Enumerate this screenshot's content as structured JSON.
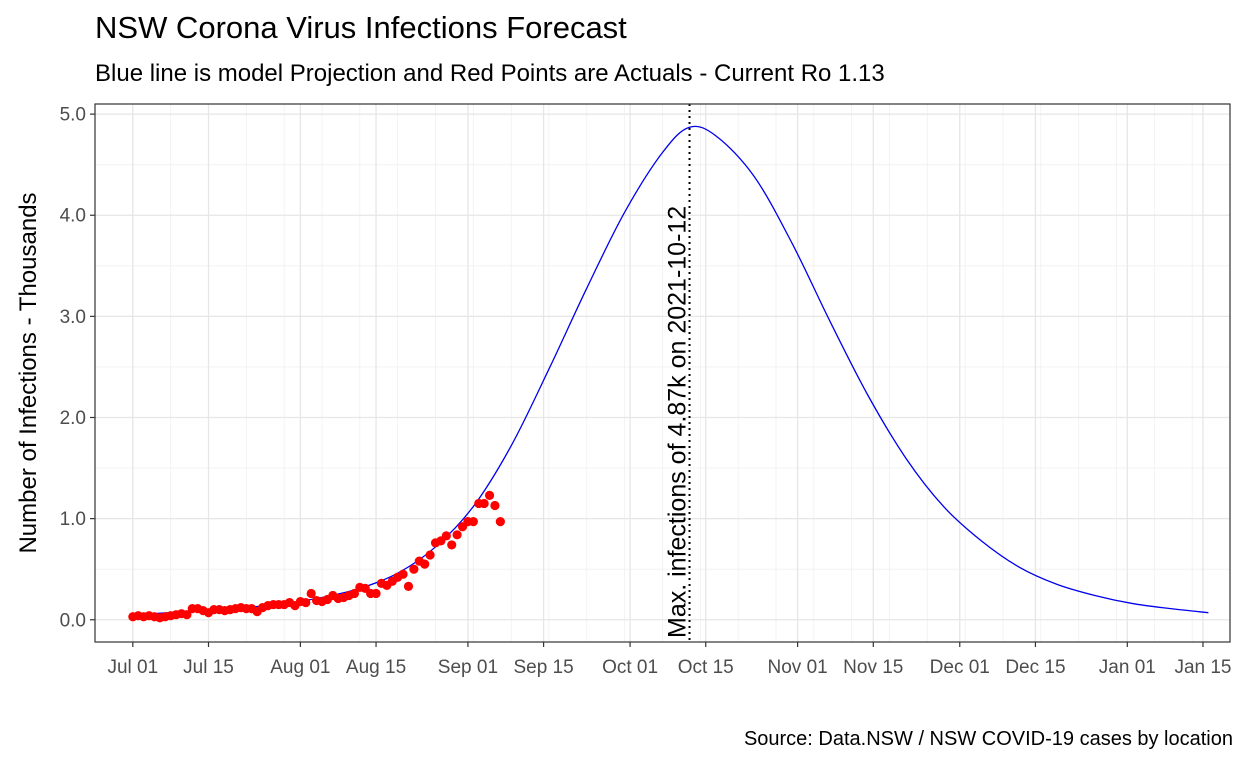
{
  "chart_data": {
    "type": "line",
    "title": "NSW Corona Virus Infections Forecast",
    "subtitle": "Blue line is model Projection and Red Points are Actuals - Current Ro 1.13",
    "caption": "Source: Data.NSW / NSW COVID-19 cases by location",
    "xlabel": "",
    "ylabel": "Number of Infections - Thousands",
    "xlim": [
      "2021-06-24",
      "2022-01-20"
    ],
    "ylim": [
      -0.22,
      5.1
    ],
    "x_ticks": [
      {
        "date": "2021-07-01",
        "label": "Jul 01"
      },
      {
        "date": "2021-07-15",
        "label": "Jul 15"
      },
      {
        "date": "2021-08-01",
        "label": "Aug 01"
      },
      {
        "date": "2021-08-15",
        "label": "Aug 15"
      },
      {
        "date": "2021-09-01",
        "label": "Sep 01"
      },
      {
        "date": "2021-09-15",
        "label": "Sep 15"
      },
      {
        "date": "2021-10-01",
        "label": "Oct 01"
      },
      {
        "date": "2021-10-15",
        "label": "Oct 15"
      },
      {
        "date": "2021-11-01",
        "label": "Nov 01"
      },
      {
        "date": "2021-11-15",
        "label": "Nov 15"
      },
      {
        "date": "2021-12-01",
        "label": "Dec 01"
      },
      {
        "date": "2021-12-15",
        "label": "Dec 15"
      },
      {
        "date": "2022-01-01",
        "label": "Jan 01"
      },
      {
        "date": "2022-01-15",
        "label": "Jan 15"
      }
    ],
    "y_ticks": [
      {
        "value": 0,
        "label": "0.0"
      },
      {
        "value": 1,
        "label": "1.0"
      },
      {
        "value": 2,
        "label": "2.0"
      },
      {
        "value": 3,
        "label": "3.0"
      },
      {
        "value": 4,
        "label": "4.0"
      },
      {
        "value": 5,
        "label": "5.0"
      }
    ],
    "grid": true,
    "series": [
      {
        "kind": "line",
        "color": "#0000ee",
        "points": [
          [
            "2021-07-01",
            0.05
          ],
          [
            "2021-07-08",
            0.07
          ],
          [
            "2021-07-15",
            0.09
          ],
          [
            "2021-07-22",
            0.12
          ],
          [
            "2021-07-29",
            0.16
          ],
          [
            "2021-08-05",
            0.22
          ],
          [
            "2021-08-12",
            0.31
          ],
          [
            "2021-08-19",
            0.46
          ],
          [
            "2021-08-26",
            0.72
          ],
          [
            "2021-09-02",
            1.12
          ],
          [
            "2021-09-09",
            1.72
          ],
          [
            "2021-09-16",
            2.48
          ],
          [
            "2021-09-23",
            3.28
          ],
          [
            "2021-09-30",
            4.03
          ],
          [
            "2021-10-07",
            4.62
          ],
          [
            "2021-10-12",
            4.87
          ],
          [
            "2021-10-17",
            4.78
          ],
          [
            "2021-10-24",
            4.38
          ],
          [
            "2021-10-31",
            3.72
          ],
          [
            "2021-11-07",
            2.95
          ],
          [
            "2021-11-14",
            2.22
          ],
          [
            "2021-11-21",
            1.6
          ],
          [
            "2021-11-28",
            1.12
          ],
          [
            "2021-12-05",
            0.78
          ],
          [
            "2021-12-12",
            0.52
          ],
          [
            "2021-12-19",
            0.35
          ],
          [
            "2021-12-26",
            0.24
          ],
          [
            "2022-01-02",
            0.16
          ],
          [
            "2022-01-09",
            0.11
          ],
          [
            "2022-01-16",
            0.07
          ]
        ]
      },
      {
        "kind": "scatter",
        "color": "#ff0000",
        "points": [
          [
            "2021-07-01",
            0.03
          ],
          [
            "2021-07-02",
            0.04
          ],
          [
            "2021-07-03",
            0.03
          ],
          [
            "2021-07-04",
            0.04
          ],
          [
            "2021-07-05",
            0.03
          ],
          [
            "2021-07-06",
            0.02
          ],
          [
            "2021-07-07",
            0.03
          ],
          [
            "2021-07-08",
            0.04
          ],
          [
            "2021-07-09",
            0.05
          ],
          [
            "2021-07-10",
            0.06
          ],
          [
            "2021-07-11",
            0.05
          ],
          [
            "2021-07-12",
            0.11
          ],
          [
            "2021-07-13",
            0.11
          ],
          [
            "2021-07-14",
            0.09
          ],
          [
            "2021-07-15",
            0.07
          ],
          [
            "2021-07-16",
            0.1
          ],
          [
            "2021-07-17",
            0.1
          ],
          [
            "2021-07-18",
            0.09
          ],
          [
            "2021-07-19",
            0.1
          ],
          [
            "2021-07-20",
            0.11
          ],
          [
            "2021-07-21",
            0.12
          ],
          [
            "2021-07-22",
            0.11
          ],
          [
            "2021-07-23",
            0.11
          ],
          [
            "2021-07-24",
            0.08
          ],
          [
            "2021-07-25",
            0.12
          ],
          [
            "2021-07-26",
            0.14
          ],
          [
            "2021-07-27",
            0.15
          ],
          [
            "2021-07-28",
            0.15
          ],
          [
            "2021-07-29",
            0.15
          ],
          [
            "2021-07-30",
            0.17
          ],
          [
            "2021-07-31",
            0.14
          ],
          [
            "2021-08-01",
            0.18
          ],
          [
            "2021-08-02",
            0.17
          ],
          [
            "2021-08-03",
            0.26
          ],
          [
            "2021-08-04",
            0.19
          ],
          [
            "2021-08-05",
            0.18
          ],
          [
            "2021-08-06",
            0.2
          ],
          [
            "2021-08-07",
            0.24
          ],
          [
            "2021-08-08",
            0.21
          ],
          [
            "2021-08-09",
            0.22
          ],
          [
            "2021-08-10",
            0.24
          ],
          [
            "2021-08-11",
            0.26
          ],
          [
            "2021-08-12",
            0.32
          ],
          [
            "2021-08-13",
            0.31
          ],
          [
            "2021-08-14",
            0.26
          ],
          [
            "2021-08-15",
            0.26
          ],
          [
            "2021-08-16",
            0.36
          ],
          [
            "2021-08-17",
            0.34
          ],
          [
            "2021-08-18",
            0.38
          ],
          [
            "2021-08-19",
            0.42
          ],
          [
            "2021-08-20",
            0.45
          ],
          [
            "2021-08-21",
            0.33
          ],
          [
            "2021-08-22",
            0.5
          ],
          [
            "2021-08-23",
            0.58
          ],
          [
            "2021-08-24",
            0.55
          ],
          [
            "2021-08-25",
            0.64
          ],
          [
            "2021-08-26",
            0.76
          ],
          [
            "2021-08-27",
            0.78
          ],
          [
            "2021-08-28",
            0.83
          ],
          [
            "2021-08-29",
            0.74
          ],
          [
            "2021-08-30",
            0.84
          ],
          [
            "2021-08-31",
            0.92
          ],
          [
            "2021-09-01",
            0.97
          ],
          [
            "2021-09-02",
            0.97
          ],
          [
            "2021-09-03",
            1.15
          ],
          [
            "2021-09-04",
            1.15
          ],
          [
            "2021-09-05",
            1.23
          ],
          [
            "2021-09-06",
            1.13
          ],
          [
            "2021-09-07",
            0.97
          ]
        ]
      }
    ],
    "annotations": [
      {
        "kind": "vline",
        "date": "2021-10-12",
        "style": "dotted",
        "color": "#000000"
      },
      {
        "kind": "text",
        "text": "Max. infections of 4.87k  on 2021-10-12",
        "rotation": -90
      }
    ]
  }
}
